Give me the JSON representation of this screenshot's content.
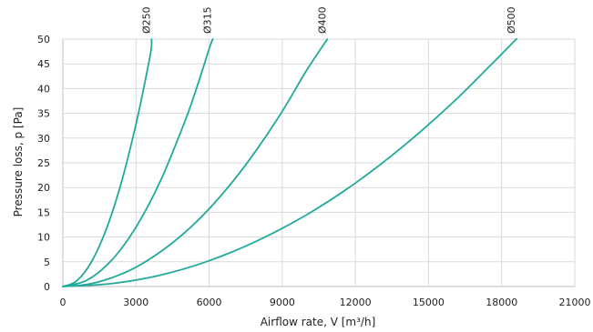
{
  "chart_data": {
    "type": "line",
    "xlabel": "Airflow rate, V [m³/h]",
    "ylabel": "Pressure loss, p [Pa]",
    "xlim": [
      0,
      21000
    ],
    "ylim": [
      0,
      50
    ],
    "x_ticks": [
      "0",
      "3000",
      "6000",
      "9000",
      "12000",
      "15000",
      "18000",
      "21000"
    ],
    "y_ticks": [
      "0",
      "5",
      "10",
      "15",
      "20",
      "25",
      "30",
      "35",
      "40",
      "45",
      "50"
    ],
    "grid": true,
    "legend": "none",
    "line_color": "#21a99a",
    "series": [
      {
        "name": "Ø250",
        "points": [
          [
            0,
            0
          ],
          [
            500,
            0.9
          ],
          [
            1000,
            3.6
          ],
          [
            1500,
            8.2
          ],
          [
            2000,
            14.6
          ],
          [
            2500,
            22.8
          ],
          [
            3000,
            32.8
          ],
          [
            3300,
            39.7
          ],
          [
            3610,
            47.5
          ],
          [
            3640,
            50
          ]
        ]
      },
      {
        "name": "Ø315",
        "points": [
          [
            0,
            0
          ],
          [
            1000,
            1.3
          ],
          [
            2000,
            5.3
          ],
          [
            3000,
            12
          ],
          [
            4000,
            21.3
          ],
          [
            5000,
            33.3
          ],
          [
            5500,
            40.3
          ],
          [
            6000,
            48
          ],
          [
            6150,
            50
          ]
        ]
      },
      {
        "name": "Ø400",
        "points": [
          [
            0,
            0
          ],
          [
            1000,
            0.44
          ],
          [
            2000,
            1.75
          ],
          [
            3000,
            3.9
          ],
          [
            4000,
            7
          ],
          [
            5000,
            10.9
          ],
          [
            6000,
            15.7
          ],
          [
            7000,
            21.4
          ],
          [
            8000,
            28
          ],
          [
            9000,
            35.4
          ],
          [
            10000,
            43.7
          ],
          [
            10850,
            50
          ]
        ]
      },
      {
        "name": "Ø500",
        "points": [
          [
            0,
            0
          ],
          [
            2000,
            0.6
          ],
          [
            4000,
            2.3
          ],
          [
            6000,
            5.2
          ],
          [
            8000,
            9.3
          ],
          [
            10000,
            14.5
          ],
          [
            12000,
            20.9
          ],
          [
            14000,
            28.5
          ],
          [
            16000,
            37.2
          ],
          [
            17500,
            44.5
          ],
          [
            18500,
            49.5
          ],
          [
            18600,
            50
          ]
        ]
      }
    ]
  }
}
